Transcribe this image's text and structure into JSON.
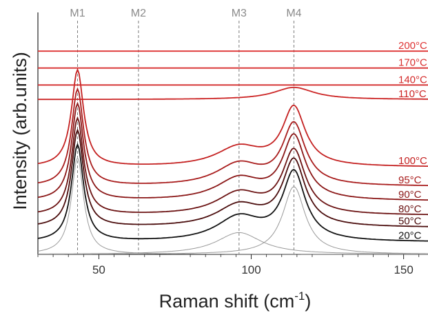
{
  "chart_data": {
    "type": "line",
    "xlabel": "Raman shift (cm",
    "xlabel_sup": "-1",
    "xlabel_close": ")",
    "ylabel": "Intensity (arb.units)",
    "xlim": [
      30,
      158
    ],
    "ylim": [
      0,
      1
    ],
    "xticks": [
      50,
      100,
      150
    ],
    "grid": false,
    "y_tick_labels": false,
    "mode_lines": [
      {
        "label": "M1",
        "x": 43
      },
      {
        "label": "M2",
        "x": 63
      },
      {
        "label": "M3",
        "x": 96
      },
      {
        "label": "M4",
        "x": 114
      }
    ],
    "series": [
      {
        "name": "20°C",
        "color": "#111111",
        "baseline": 0.05,
        "peaks": [
          [
            43,
            0.4,
            2.4
          ],
          [
            96,
            0.1,
            9
          ],
          [
            114,
            0.28,
            4.5
          ]
        ]
      },
      {
        "name": "50°C",
        "color": "#4a0c0c",
        "baseline": 0.11,
        "peaks": [
          [
            43,
            0.4,
            2.4
          ],
          [
            96,
            0.09,
            9
          ],
          [
            114,
            0.27,
            4.5
          ]
        ]
      },
      {
        "name": "80°C",
        "color": "#6b1212",
        "baseline": 0.16,
        "peaks": [
          [
            43,
            0.4,
            2.4
          ],
          [
            96,
            0.09,
            9
          ],
          [
            114,
            0.26,
            4.5
          ]
        ]
      },
      {
        "name": "90°C",
        "color": "#8a1616",
        "baseline": 0.22,
        "peaks": [
          [
            43,
            0.4,
            2.4
          ],
          [
            96,
            0.09,
            9
          ],
          [
            114,
            0.26,
            4.5
          ]
        ]
      },
      {
        "name": "95°C",
        "color": "#a81b1b",
        "baseline": 0.28,
        "peaks": [
          [
            43,
            0.4,
            2.4
          ],
          [
            96,
            0.09,
            9
          ],
          [
            114,
            0.25,
            4.5
          ]
        ]
      },
      {
        "name": "100°C",
        "color": "#c42020",
        "baseline": 0.36,
        "peaks": [
          [
            43,
            0.4,
            2.4
          ],
          [
            96,
            0.08,
            9
          ],
          [
            114,
            0.24,
            4.5
          ]
        ]
      },
      {
        "name": "110°C",
        "color": "#cc2424",
        "baseline": 0.64,
        "peaks": [
          [
            114,
            0.05,
            8
          ]
        ]
      },
      {
        "name": "140°C",
        "color": "#d42a2a",
        "baseline": 0.7,
        "peaks": []
      },
      {
        "name": "170°C",
        "color": "#d82e2e",
        "baseline": 0.77,
        "peaks": []
      },
      {
        "name": "200°C",
        "color": "#de3333",
        "baseline": 0.84,
        "peaks": []
      }
    ],
    "fit_components": [
      {
        "name": "fit-M1",
        "color": "#999999",
        "baseline": 0.0,
        "peaks": [
          [
            43,
            0.4,
            2.4
          ]
        ]
      },
      {
        "name": "fit-M3",
        "color": "#999999",
        "baseline": 0.0,
        "peaks": [
          [
            96,
            0.09,
            9
          ]
        ]
      },
      {
        "name": "fit-M4",
        "color": "#999999",
        "baseline": 0.0,
        "peaks": [
          [
            114,
            0.28,
            4.5
          ]
        ]
      }
    ]
  }
}
